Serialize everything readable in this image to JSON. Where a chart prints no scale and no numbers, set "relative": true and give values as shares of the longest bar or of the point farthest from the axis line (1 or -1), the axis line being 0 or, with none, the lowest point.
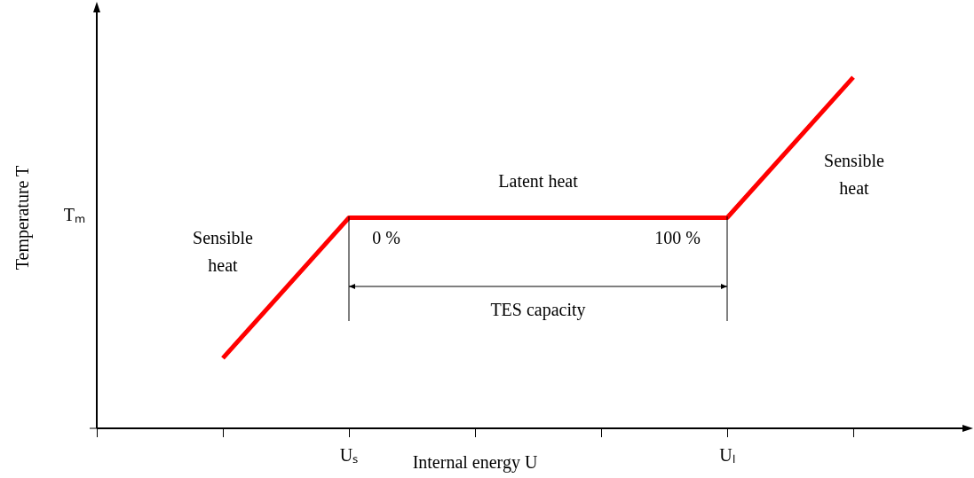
{
  "chart_data": {
    "type": "line",
    "xlabel": "Internal energy U",
    "ylabel": "Temperature T",
    "relative": true,
    "categories": [
      null,
      null,
      "Uₛ",
      null,
      null,
      "Uₗ",
      null
    ],
    "series": [
      {
        "color": "#ff0000",
        "values": [
          null,
          0.2,
          0.6,
          0.6,
          0.6,
          0.6,
          1
        ]
      }
    ],
    "annotations": [
      "Sensible\nheat",
      "Latent heat",
      "Sensible\nheat",
      "0 %",
      "100 %",
      "TES capacity",
      "Tₘ"
    ],
    "grid": false,
    "legend": false,
    "marker": "none",
    "line_style": "solid"
  }
}
